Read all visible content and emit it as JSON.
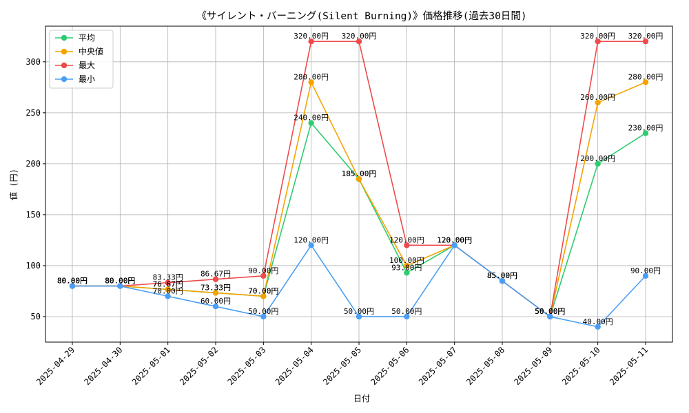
{
  "chart_data": {
    "type": "line",
    "title": "《サイレント・バーニング(Silent Burning)》価格推移(過去30日間)",
    "xlabel": "日付",
    "ylabel": "値 (円)",
    "categories": [
      "2025-04-29",
      "2025-04-30",
      "2025-05-01",
      "2025-05-02",
      "2025-05-03",
      "2025-05-04",
      "2025-05-05",
      "2025-05-06",
      "2025-05-07",
      "2025-05-08",
      "2025-05-09",
      "2025-05-10",
      "2025-05-11"
    ],
    "ylim": [
      25,
      335
    ],
    "yticks": [
      50,
      100,
      150,
      200,
      250,
      300
    ],
    "grid": true,
    "legend_position": "top-left",
    "label_suffix": "円",
    "series": [
      {
        "name": "平均",
        "color": "#2ecc71",
        "values": [
          80,
          80,
          76.67,
          73.33,
          70,
          240,
          185,
          93,
          120,
          85,
          50,
          200,
          230
        ]
      },
      {
        "name": "中央値",
        "color": "#f5a300",
        "values": [
          80,
          80,
          76.67,
          73.33,
          70,
          280,
          185,
          100,
          120,
          85,
          50,
          260,
          280
        ]
      },
      {
        "name": "最大",
        "color": "#ef4b4b",
        "values": [
          80,
          80,
          83.33,
          86.67,
          90,
          320,
          320,
          120,
          120,
          85,
          50,
          320,
          320
        ]
      },
      {
        "name": "最小",
        "color": "#4a9ff5",
        "values": [
          80,
          80,
          70,
          60,
          50,
          120,
          50,
          50,
          120,
          85,
          50,
          40,
          90
        ]
      }
    ]
  }
}
